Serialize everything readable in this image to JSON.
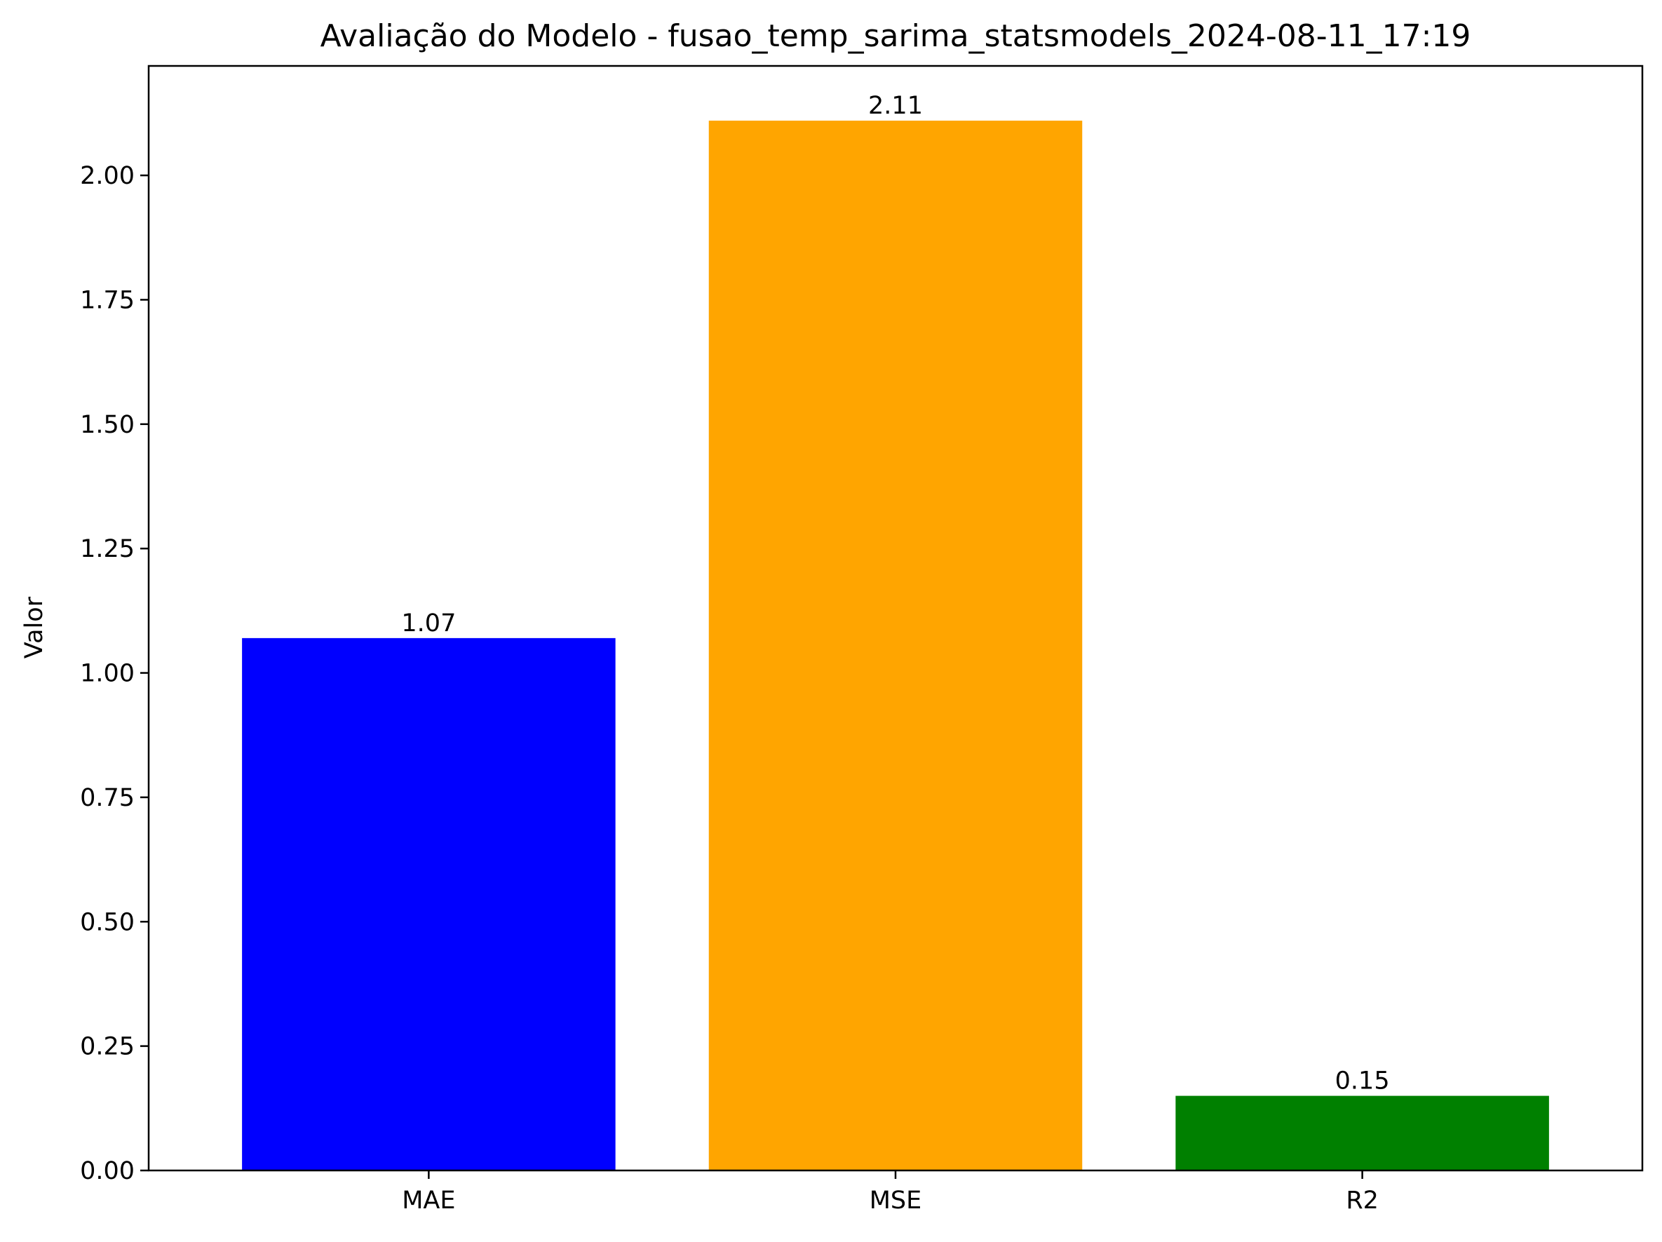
{
  "chart_data": {
    "type": "bar",
    "title": "Avaliação do Modelo - fusao_temp_sarima_statsmodels_2024-08-11_17:19",
    "xlabel": "",
    "ylabel": "Valor",
    "categories": [
      "MAE",
      "MSE",
      "R2"
    ],
    "values": [
      1.07,
      2.11,
      0.15
    ],
    "value_labels": [
      "1.07",
      "2.11",
      "0.15"
    ],
    "colors": [
      "#0000ff",
      "#ffa500",
      "#008000"
    ],
    "ylim": [
      0,
      2.22
    ],
    "yticks": [
      0.0,
      0.25,
      0.5,
      0.75,
      1.0,
      1.25,
      1.5,
      1.75,
      2.0
    ],
    "ytick_labels": [
      "0.00",
      "0.25",
      "0.50",
      "0.75",
      "1.00",
      "1.25",
      "1.50",
      "1.75",
      "2.00"
    ],
    "grid": false,
    "legend": "none"
  }
}
